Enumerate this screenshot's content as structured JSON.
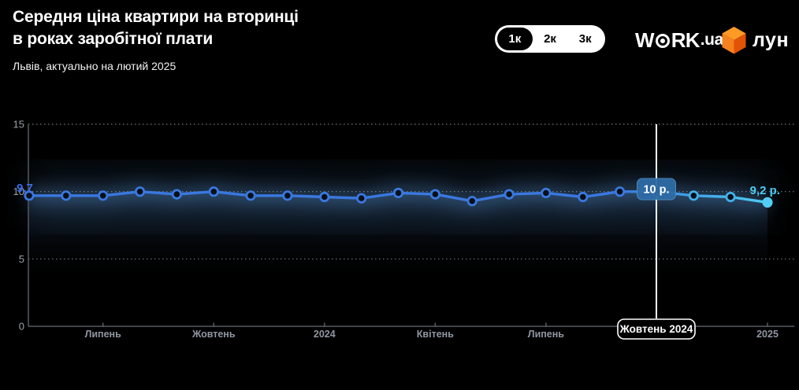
{
  "header": {
    "title_line1": "Середня ціна квартири на вторинці",
    "title_line2": "в роках заробітної плати",
    "subtitle": "Львів, актуально на лютий 2025",
    "toggle": {
      "options": [
        "1к",
        "2к",
        "3к"
      ],
      "selected": "1к"
    },
    "logos": {
      "workua": {
        "pre_o": "W",
        "post_o": "RK",
        "suffix": ".ua"
      },
      "lun": {
        "text": "лун",
        "cube_colors": {
          "top": "#FF9A25",
          "left": "#F6821F",
          "right": "#E25306"
        }
      }
    }
  },
  "chart_data": {
    "type": "line",
    "title": "Середня ціна квартири на вторинці в роках заробітної плати",
    "subtitle": "Львів, актуально на лютий 2025",
    "values": [
      9.7,
      9.7,
      9.7,
      10.0,
      9.8,
      10.0,
      9.7,
      9.7,
      9.6,
      9.5,
      9.9,
      9.8,
      9.3,
      9.8,
      9.9,
      9.6,
      10.0,
      10.0,
      9.7,
      9.6,
      9.2
    ],
    "ylim": [
      0,
      15
    ],
    "yticks": [
      {
        "value": 0,
        "label": "0"
      },
      {
        "value": 5,
        "label": "5"
      },
      {
        "value": 10,
        "label": "10"
      },
      {
        "value": 15,
        "label": "15"
      }
    ],
    "xticks": [
      {
        "index": 2,
        "label": "Липень"
      },
      {
        "index": 5,
        "label": "Жовтень"
      },
      {
        "index": 8,
        "label": "2024"
      },
      {
        "index": 11,
        "label": "Квітень"
      },
      {
        "index": 14,
        "label": "Липень"
      },
      {
        "index": 20,
        "label": "2025"
      }
    ],
    "grid": "dotted-horizontal",
    "legend": "none",
    "start_label": "9,7",
    "end_label": "9,2 р.",
    "marker": {
      "index": 17,
      "tooltip": "10 р.",
      "label": "Жовтень 2024"
    },
    "colors": {
      "line": "#3A78E0",
      "line_mid": "#44AEE9",
      "line_end": "#52CDF3",
      "point_fill": "#0A1018",
      "grid": "#888D94",
      "axis": "#565B63",
      "tick_text": "#8F96A2",
      "ylabel_text": "#9AA0A8",
      "marker_line": "#FFFFFF",
      "tooltip_bg": "#2E6CA6",
      "tooltip_border": "#4F8CC0",
      "start_label_color": "#3B6BE8",
      "end_label_color": "#4ECBF2",
      "glow": "rgba(90,150,215,0.30)",
      "glow_wide": "rgba(70,120,180,0.14)",
      "area_top": "rgba(70,120,175,0.33)",
      "area_bottom": "rgba(10,20,35,0)"
    }
  }
}
